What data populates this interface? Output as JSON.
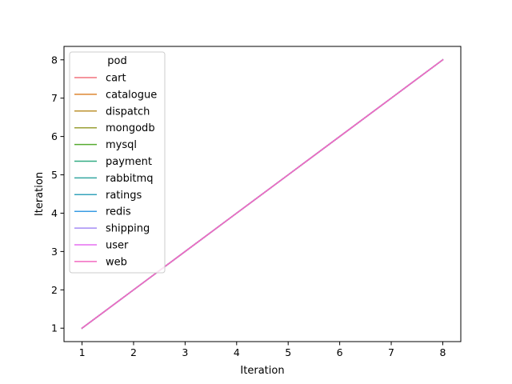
{
  "chart_data": {
    "type": "line",
    "title": "",
    "xlabel": "Iteration",
    "ylabel": "Iteration",
    "xlim": [
      0.65,
      8.35
    ],
    "ylim": [
      0.65,
      8.35
    ],
    "xticks": [
      1,
      2,
      3,
      4,
      5,
      6,
      7,
      8
    ],
    "yticks": [
      1,
      2,
      3,
      4,
      5,
      6,
      7,
      8
    ],
    "grid": false,
    "legend": {
      "title": "pod",
      "placement": "top-left"
    },
    "x": [
      1,
      2,
      3,
      4,
      5,
      6,
      7,
      8
    ],
    "series": [
      {
        "name": "cart",
        "color": "#f2727d",
        "values": [
          1,
          2,
          3,
          4,
          5,
          6,
          7,
          8
        ]
      },
      {
        "name": "catalogue",
        "color": "#dd8630",
        "values": [
          1,
          2,
          3,
          4,
          5,
          6,
          7,
          8
        ]
      },
      {
        "name": "dispatch",
        "color": "#bd9330",
        "values": [
          1,
          2,
          3,
          4,
          5,
          6,
          7,
          8
        ]
      },
      {
        "name": "mongodb",
        "color": "#9a9f36",
        "values": [
          1,
          2,
          3,
          4,
          5,
          6,
          7,
          8
        ]
      },
      {
        "name": "mysql",
        "color": "#56ab31",
        "values": [
          1,
          2,
          3,
          4,
          5,
          6,
          7,
          8
        ]
      },
      {
        "name": "payment",
        "color": "#32ab83",
        "values": [
          1,
          2,
          3,
          4,
          5,
          6,
          7,
          8
        ]
      },
      {
        "name": "rabbitmq",
        "color": "#34a6a0",
        "values": [
          1,
          2,
          3,
          4,
          5,
          6,
          7,
          8
        ]
      },
      {
        "name": "ratings",
        "color": "#35a3bb",
        "values": [
          1,
          2,
          3,
          4,
          5,
          6,
          7,
          8
        ]
      },
      {
        "name": "redis",
        "color": "#3a9ce3",
        "values": [
          1,
          2,
          3,
          4,
          5,
          6,
          7,
          8
        ]
      },
      {
        "name": "shipping",
        "color": "#a48cf4",
        "values": [
          1,
          2,
          3,
          4,
          5,
          6,
          7,
          8
        ]
      },
      {
        "name": "user",
        "color": "#e56ff1",
        "values": [
          1,
          2,
          3,
          4,
          5,
          6,
          7,
          8
        ]
      },
      {
        "name": "web",
        "color": "#f26ac0",
        "values": [
          1,
          2,
          3,
          4,
          5,
          6,
          7,
          8
        ]
      }
    ]
  }
}
